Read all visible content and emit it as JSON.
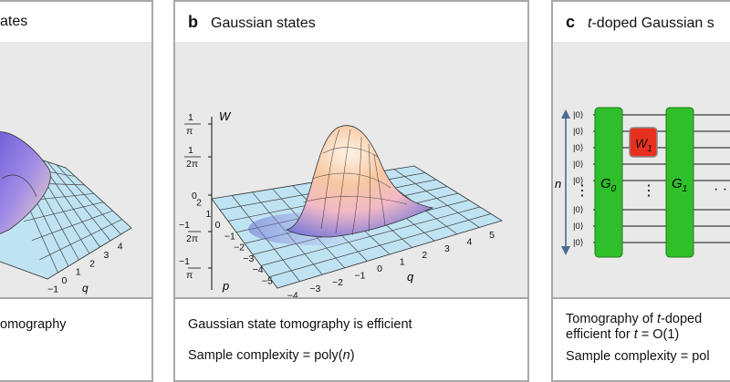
{
  "panel_a": {
    "title_tail": "ates",
    "x_axis_label": "q",
    "x_ticks": [
      "−1",
      "0",
      "1",
      "2",
      "3",
      "4"
    ],
    "footer_line1": "omography"
  },
  "panel_b": {
    "label": "b",
    "title": "Gaussian states",
    "w_axis_label": "W",
    "w_ticks": [
      {
        "num": "1",
        "den": "π"
      },
      {
        "num": "1",
        "den": "2π"
      },
      {
        "num": "0",
        "den": ""
      },
      {
        "num": "−1",
        "den": "2π",
        "neg": true
      },
      {
        "num": "−1",
        "den": "π",
        "neg": true
      }
    ],
    "q_label": "q",
    "q_ticks": [
      "−4",
      "−3",
      "−2",
      "−1",
      "0",
      "1",
      "2",
      "3",
      "4",
      "5"
    ],
    "p_label": "p",
    "p_ticks": [
      "2",
      "1",
      "0",
      "−1",
      "−2",
      "−3",
      "−4",
      "−5"
    ],
    "footer_line1": "Gaussian state tomography is efficient",
    "footer_line2_prefix": "Sample complexity = poly(",
    "footer_line2_var": "n",
    "footer_line2_suffix": ")"
  },
  "panel_c": {
    "label": "c",
    "title_var": "t",
    "title_rest": "-doped Gaussian s",
    "ket_label": "|0⟩",
    "n_label": "n",
    "gates": [
      "G",
      "W",
      "G"
    ],
    "gate_subscripts": [
      "0",
      "1",
      "1"
    ],
    "dots_vertical": "⋮",
    "dots_horizontal": "· ·",
    "footer_line1_prefix": "Tomography of ",
    "footer_line1_var": "t",
    "footer_line1_rest": "-doped",
    "footer_line2_prefix": "efficient for ",
    "footer_line2_var": "t",
    "footer_line2_rest": " = O(1)",
    "footer_line3": "Sample complexity = pol"
  },
  "colors": {
    "border": "#a8a8a8",
    "fig_bg": "#e9e9e9",
    "gate_green": "#2fbf2a",
    "gate_red": "#e8301e",
    "grid_blue": "#bfe3f2",
    "arrow_blue": "#4a6c8e"
  }
}
